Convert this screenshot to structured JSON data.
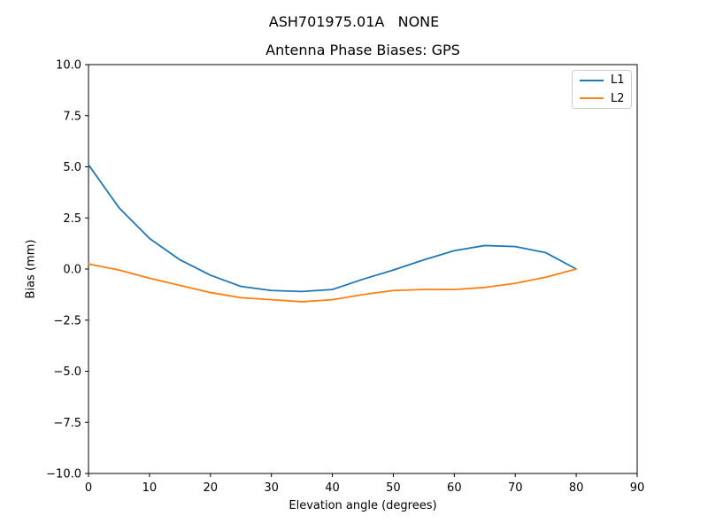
{
  "figure": {
    "suptitle": "ASH701975.01A   NONE",
    "background": "#ffffff",
    "text_color": "#000000",
    "spine_color": "#000000"
  },
  "chart_data": {
    "type": "line",
    "title": "Antenna Phase Biases: GPS",
    "xlabel": "Elevation angle (degrees)",
    "ylabel": "Bias (mm)",
    "xlim": [
      0,
      90
    ],
    "ylim": [
      -10,
      10
    ],
    "xticks": [
      0,
      10,
      20,
      30,
      40,
      50,
      60,
      70,
      80,
      90
    ],
    "xtick_labels": [
      "0",
      "10",
      "20",
      "30",
      "40",
      "50",
      "60",
      "70",
      "80",
      "90"
    ],
    "yticks": [
      -10,
      -7.5,
      -5,
      -2.5,
      0,
      2.5,
      5,
      7.5,
      10
    ],
    "ytick_labels": [
      "−10.0",
      "−7.5",
      "−5.0",
      "−2.5",
      "0.0",
      "2.5",
      "5.0",
      "7.5",
      "10.0"
    ],
    "grid": false,
    "legend": {
      "position": "upper right",
      "entries": [
        "L1",
        "L2"
      ]
    },
    "x": [
      0,
      5,
      10,
      15,
      20,
      25,
      30,
      35,
      40,
      45,
      50,
      55,
      60,
      65,
      70,
      75,
      80
    ],
    "series": [
      {
        "name": "L1",
        "color": "#1f77b4",
        "values": [
          5.1,
          3.0,
          1.5,
          0.45,
          -0.3,
          -0.85,
          -1.05,
          -1.1,
          -1.0,
          -0.5,
          -0.05,
          0.45,
          0.9,
          1.15,
          1.1,
          0.8,
          0.0
        ]
      },
      {
        "name": "L2",
        "color": "#ff7f0e",
        "values": [
          0.25,
          -0.05,
          -0.45,
          -0.8,
          -1.15,
          -1.4,
          -1.5,
          -1.6,
          -1.5,
          -1.25,
          -1.05,
          -1.0,
          -1.0,
          -0.9,
          -0.7,
          -0.4,
          0.0
        ]
      }
    ]
  }
}
